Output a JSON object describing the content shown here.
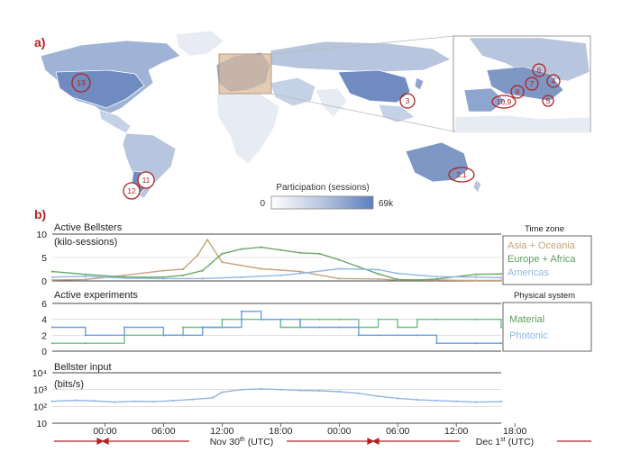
{
  "panel_a": {
    "label": "a)",
    "markers": [
      "13",
      "3",
      "12",
      "11",
      "2,1",
      "6",
      "4",
      "7",
      "8",
      "10,9",
      "5"
    ],
    "colorbar": {
      "title": "Participation (sessions)",
      "min_label": "0",
      "max_label": "69k"
    },
    "colors": {
      "ocean": "#ffffff",
      "land_light": "#e6ebf4",
      "land_mid": "#b7c5de",
      "land_dark": "#7e97c4",
      "marker": "#b22222",
      "inset_highlight": "#d9b99b"
    }
  },
  "panel_b": {
    "label": "b)"
  },
  "chart_data": [
    {
      "type": "line",
      "title": "Active Bellsters",
      "ylabel": "(kilo-sessions)",
      "ylim": [
        0,
        10
      ],
      "yticks": [
        "0",
        "5",
        "10"
      ],
      "x_unit": "hours since Nov 30th 00:00 UTC",
      "legend_title": "Time zone",
      "series": [
        {
          "name": "Asia + Oceania",
          "color": "#c8a27a",
          "x": [
            -5.4,
            -2,
            2,
            6,
            8,
            9.5,
            10.5,
            12,
            16,
            20,
            24,
            28,
            30,
            34,
            38,
            40.6
          ],
          "y": [
            0.2,
            0.3,
            1.2,
            2.2,
            2.5,
            5.5,
            8.8,
            4.0,
            2.6,
            2.0,
            0.5,
            0.4,
            0.2,
            0.2,
            0.1,
            0.1
          ]
        },
        {
          "name": "Europe + Africa",
          "color": "#6aa86a",
          "x": [
            -5.4,
            -2,
            2,
            6,
            8,
            10,
            12,
            14,
            16,
            18,
            20,
            22,
            24,
            26,
            28,
            30,
            32,
            34,
            38,
            40.6
          ],
          "y": [
            2.0,
            1.4,
            0.8,
            0.8,
            1.2,
            2.2,
            5.8,
            6.8,
            7.2,
            6.6,
            6.0,
            5.8,
            4.5,
            3.0,
            1.5,
            0.3,
            0.2,
            0.4,
            1.4,
            1.5
          ]
        },
        {
          "name": "Americas",
          "color": "#8fb6e6",
          "x": [
            -5.4,
            -2,
            2,
            6,
            10,
            14,
            18,
            20,
            24,
            28,
            30,
            34,
            38,
            40.6
          ],
          "y": [
            0.8,
            1.0,
            0.6,
            0.5,
            0.5,
            0.8,
            1.2,
            1.6,
            2.6,
            2.4,
            1.6,
            0.9,
            0.8,
            0.7
          ]
        }
      ]
    },
    {
      "type": "line",
      "title": "Active experiments",
      "ylim": [
        0,
        6
      ],
      "yticks": [
        "0",
        "2",
        "4",
        "6"
      ],
      "legend_title": "Physical system",
      "series": [
        {
          "name": "Material",
          "color": "#6fbf8a",
          "x": [
            -5.4,
            -2,
            2,
            6,
            8,
            10,
            12,
            14,
            16,
            18,
            20,
            22,
            24,
            26,
            28,
            30,
            32,
            34,
            38,
            40.6
          ],
          "y": [
            1,
            1,
            2,
            2,
            3,
            3,
            4,
            4,
            4,
            3,
            4,
            4,
            4,
            3,
            4,
            3,
            4,
            4,
            4,
            3
          ]
        },
        {
          "name": "Photonic",
          "color": "#6a9fe0",
          "x": [
            -5.4,
            -2,
            2,
            6,
            8,
            10,
            12,
            14,
            16,
            18,
            20,
            22,
            24,
            26,
            28,
            30,
            32,
            34,
            38,
            40.6
          ],
          "y": [
            3,
            2,
            3,
            2,
            2,
            3,
            3,
            5,
            4,
            4,
            3,
            3,
            3,
            2,
            2,
            2,
            2,
            1,
            1,
            1
          ]
        }
      ]
    },
    {
      "type": "line",
      "title": "Bellster input",
      "ylabel": "(bits/s)",
      "y_scale": "log",
      "ylim": [
        10,
        10000
      ],
      "yticks": [
        "10",
        "10²",
        "10³",
        "10⁴"
      ],
      "series": [
        {
          "name": "",
          "color": "#8fb6e6",
          "x": [
            -5.4,
            -3,
            -1,
            1,
            3,
            5,
            7,
            9,
            11,
            12,
            14,
            16,
            18,
            20,
            22,
            24,
            26,
            28,
            30,
            32,
            34,
            36,
            38,
            40.6
          ],
          "y": [
            200,
            230,
            210,
            180,
            200,
            190,
            220,
            260,
            320,
            700,
            1000,
            1100,
            1000,
            900,
            850,
            750,
            600,
            400,
            300,
            250,
            220,
            200,
            180,
            190
          ]
        }
      ]
    }
  ],
  "time_axis": {
    "ticks": [
      {
        "x": 0,
        "label": "00:00"
      },
      {
        "x": 6,
        "label": "06:00"
      },
      {
        "x": 12,
        "label": "12:00"
      },
      {
        "x": 18,
        "label": "18:00"
      },
      {
        "x": 24,
        "label": "00:00"
      },
      {
        "x": 30,
        "label": "06:00"
      },
      {
        "x": 36,
        "label": "12:00"
      },
      {
        "x": 42,
        "label": "18:00"
      }
    ],
    "date_labels": {
      "nov_main": "Nov 30",
      "nov_sup": "th",
      "nov_tail": " (UTC)",
      "dec_main": "Dec 1",
      "dec_sup": "st",
      "dec_tail": " (UTC)"
    }
  }
}
